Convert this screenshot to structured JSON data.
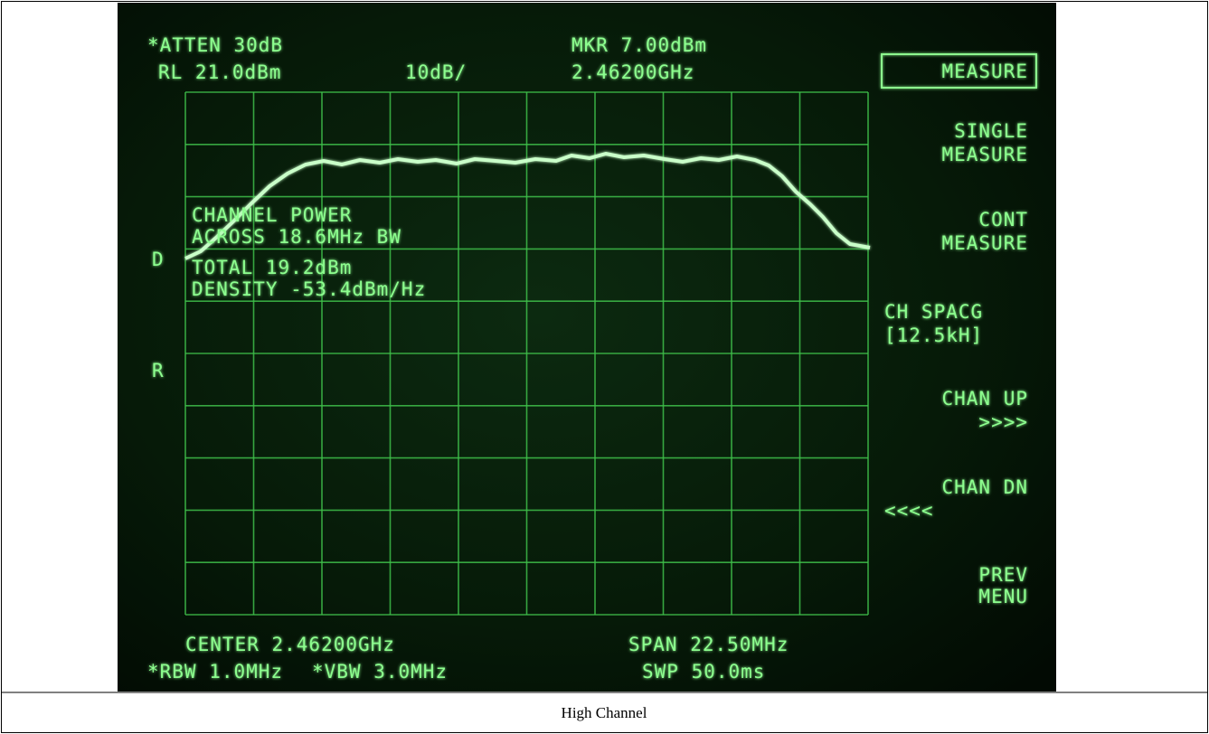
{
  "screen": {
    "status": {
      "atten": "*ATTEN 30dB",
      "ref_level": "RL 21.0dBm",
      "scale": "10dB/",
      "marker": "MKR 7.00dBm",
      "marker_freq": "2.46200GHz"
    },
    "side_marks": [
      "D",
      "R"
    ],
    "readout": [
      "CHANNEL POWER",
      "ACROSS 18.6MHz BW",
      "TOTAL 19.2dBm",
      "DENSITY -53.4dBm/Hz"
    ],
    "footer": {
      "center": "CENTER 2.46200GHz",
      "span": "SPAN 22.50MHz",
      "rbw": "*RBW 1.0MHz",
      "vbw": "*VBW 3.0MHz",
      "sweep": "SWP 50.0ms"
    },
    "softkeys": [
      [
        "MEASURE"
      ],
      [
        "SINGLE",
        "MEASURE"
      ],
      [
        "CONT",
        "MEASURE"
      ],
      [
        "CH SPACG",
        "[12.5kH]"
      ],
      [
        "CHAN UP",
        ">>>>"
      ],
      [
        "CHAN DN",
        "<<<<"
      ],
      [
        "PREV",
        "MENU"
      ]
    ]
  },
  "caption": "High Channel"
}
